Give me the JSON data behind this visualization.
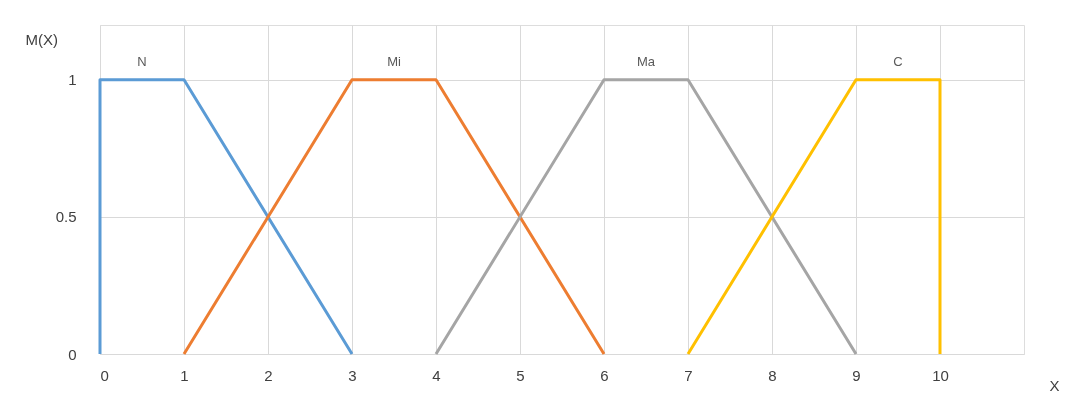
{
  "chart_data": {
    "type": "line",
    "xlabel": "X",
    "ylabel": "M(X)",
    "series": [
      {
        "name": "N",
        "color": "#5b9bd5",
        "x": [
          0,
          0,
          1,
          3
        ],
        "values": [
          0,
          1,
          1,
          0
        ]
      },
      {
        "name": "Mi",
        "color": "#ed7d31",
        "x": [
          1,
          3,
          4,
          6
        ],
        "values": [
          0,
          1,
          1,
          0
        ]
      },
      {
        "name": "Ma",
        "color": "#a5a5a5",
        "x": [
          4,
          6,
          7,
          9
        ],
        "values": [
          0,
          1,
          1,
          0
        ]
      },
      {
        "name": "C",
        "color": "#ffc000",
        "x": [
          7,
          9,
          10,
          10
        ],
        "values": [
          0,
          1,
          1,
          0
        ]
      }
    ],
    "xlim": [
      0,
      11
    ],
    "xticks": [
      0,
      1,
      2,
      3,
      4,
      5,
      6,
      7,
      8,
      9,
      10
    ],
    "ylim": [
      0,
      1.2
    ],
    "yticks": [
      0,
      0.5,
      1
    ],
    "grid": true,
    "legend": false,
    "marker": "none",
    "line_style": "solid"
  }
}
